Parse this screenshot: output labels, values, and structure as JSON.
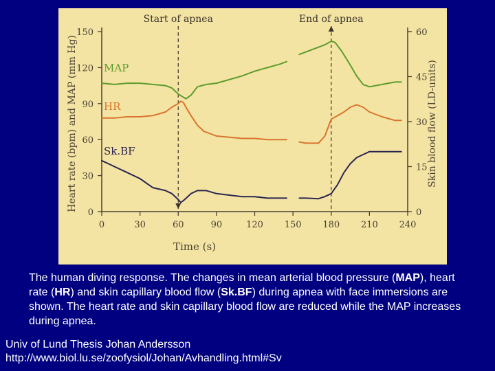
{
  "chart_data": {
    "type": "line",
    "title": "",
    "xlabel": "Time (s)",
    "ylabel_left": "Heart rate (bpm) and MAP (mm Hg)",
    "ylabel_right": "Skin blood flow (LD-units)",
    "x_ticks": [
      "0",
      "30",
      "60",
      "90",
      "120",
      "150",
      "180",
      "210",
      "240"
    ],
    "y_left_ticks": [
      "0",
      "30",
      "60",
      "90",
      "120",
      "150"
    ],
    "y_right_ticks": [
      "0",
      "15",
      "30",
      "45",
      "60"
    ],
    "xlim": [
      0,
      240
    ],
    "ylim_left": [
      0,
      150
    ],
    "ylim_right": [
      0,
      60
    ],
    "annotations": [
      {
        "label": "Start of apnea",
        "x": 60
      },
      {
        "label": "End of apnea",
        "x": 180
      }
    ],
    "series": [
      {
        "name": "MAP",
        "color": "#5c9c2c",
        "axis": "left",
        "segments": [
          [
            [
              0,
              107
            ],
            [
              10,
              106
            ],
            [
              20,
              107
            ],
            [
              30,
              107
            ],
            [
              40,
              106
            ],
            [
              50,
              105
            ],
            [
              55,
              103
            ],
            [
              60,
              98
            ],
            [
              63,
              96
            ],
            [
              66,
              94
            ],
            [
              70,
              97
            ],
            [
              75,
              104
            ],
            [
              82,
              106
            ],
            [
              90,
              107
            ],
            [
              100,
              110
            ],
            [
              110,
              113
            ],
            [
              120,
              117
            ],
            [
              130,
              120
            ],
            [
              140,
              123
            ],
            [
              145,
              125
            ]
          ],
          [
            [
              155,
              131
            ],
            [
              160,
              133
            ],
            [
              170,
              137
            ],
            [
              175,
              139
            ],
            [
              180,
              142
            ],
            [
              183,
              141
            ],
            [
              188,
              134
            ],
            [
              195,
              122
            ],
            [
              200,
              113
            ],
            [
              205,
              106
            ],
            [
              210,
              104
            ],
            [
              220,
              106
            ],
            [
              230,
              108
            ],
            [
              235,
              108
            ]
          ]
        ]
      },
      {
        "name": "HR",
        "color": "#d8742c",
        "axis": "left",
        "segments": [
          [
            [
              0,
              78
            ],
            [
              10,
              78
            ],
            [
              20,
              79
            ],
            [
              30,
              79
            ],
            [
              40,
              80
            ],
            [
              50,
              83
            ],
            [
              55,
              87
            ],
            [
              60,
              90
            ],
            [
              62,
              92
            ],
            [
              64,
              91
            ],
            [
              66,
              87
            ],
            [
              70,
              80
            ],
            [
              75,
              72
            ],
            [
              80,
              67
            ],
            [
              90,
              63
            ],
            [
              100,
              62
            ],
            [
              110,
              61
            ],
            [
              120,
              61
            ],
            [
              130,
              60
            ],
            [
              140,
              60
            ],
            [
              145,
              60
            ]
          ],
          [
            [
              155,
              58
            ],
            [
              160,
              57
            ],
            [
              170,
              57
            ],
            [
              175,
              63
            ],
            [
              180,
              77
            ],
            [
              185,
              80
            ],
            [
              190,
              83
            ],
            [
              195,
              87
            ],
            [
              200,
              89
            ],
            [
              205,
              87
            ],
            [
              210,
              83
            ],
            [
              220,
              79
            ],
            [
              230,
              76
            ],
            [
              235,
              76
            ]
          ]
        ]
      },
      {
        "name": "Sk.BF",
        "color": "#2a2450",
        "axis": "right",
        "segments": [
          [
            [
              0,
              17
            ],
            [
              5,
              16
            ],
            [
              10,
              15
            ],
            [
              20,
              13
            ],
            [
              30,
              11
            ],
            [
              40,
              8
            ],
            [
              50,
              7
            ],
            [
              55,
              6
            ],
            [
              60,
              4
            ],
            [
              62,
              3
            ],
            [
              65,
              4
            ],
            [
              70,
              6
            ],
            [
              75,
              7
            ],
            [
              82,
              7
            ],
            [
              90,
              6
            ],
            [
              100,
              5.5
            ],
            [
              110,
              5
            ],
            [
              120,
              5
            ],
            [
              130,
              4.5
            ],
            [
              140,
              4.5
            ],
            [
              145,
              4.5
            ]
          ],
          [
            [
              155,
              4.5
            ],
            [
              160,
              4.5
            ],
            [
              170,
              4.3
            ],
            [
              175,
              5
            ],
            [
              180,
              6
            ],
            [
              185,
              9
            ],
            [
              190,
              13
            ],
            [
              195,
              16
            ],
            [
              200,
              18
            ],
            [
              205,
              19
            ],
            [
              210,
              20
            ],
            [
              220,
              20
            ],
            [
              230,
              20
            ],
            [
              235,
              20
            ]
          ]
        ]
      }
    ]
  },
  "caption": {
    "part1": "The human diving response. The changes in mean arterial blood pressure (",
    "b1": "MAP",
    "part2": "), heart rate (",
    "b2": "HR",
    "part3": ") and skin capillary blood flow (",
    "b3": "Sk.BF",
    "part4": ") during apnea with face immersions are shown. The heart rate and skin capillary blood flow are reduced while the MAP increases during apnea."
  },
  "credit": {
    "line1": "Univ of Lund Thesis Johan Andersson",
    "line2": "http://www.biol.lu.se/zoofysiol/Johan/Avhandling.html#Sv"
  },
  "colors": {
    "background": "#000080",
    "panel": "#f3e4a4",
    "axis": "#4a4030"
  }
}
